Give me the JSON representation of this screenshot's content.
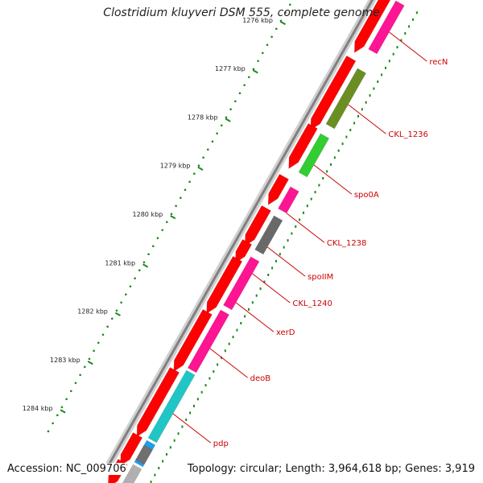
{
  "title": "Clostridium kluyveri DSM 555, complete genome",
  "footer": {
    "accession": "Accession: NC_009706",
    "summary": "Topology: circular; Length: 3,964,618 bp; Genes: 3,919"
  },
  "colors": {
    "cds": "#ff0000",
    "label": "#cc0000",
    "backbone": "#808080",
    "ticks_major": "#1a8a1a",
    "ticks_minor": "#1a8a1a"
  },
  "kbp_ticks": [
    "1276 kbp",
    "1277 kbp",
    "1278 kbp",
    "1279 kbp",
    "1280 kbp",
    "1281 kbp",
    "1282 kbp",
    "1283 kbp",
    "1284 kbp"
  ],
  "genes": [
    {
      "name": "recN",
      "color": "#ff1493"
    },
    {
      "name": "CKL_1236",
      "color": "#6b8e23"
    },
    {
      "name": "spo0A",
      "color": "#32cd32"
    },
    {
      "name": "CKL_1238",
      "color": "#ff1493"
    },
    {
      "name": "spoIIM",
      "color": "#696969"
    },
    {
      "name": "CKL_1240",
      "color": "#ff1493"
    },
    {
      "name": "xerD",
      "color": "#ff1493"
    },
    {
      "name": "deoB",
      "color": "#20c6c6"
    },
    {
      "name": "pdp",
      "color": "#1e9fe6"
    }
  ]
}
